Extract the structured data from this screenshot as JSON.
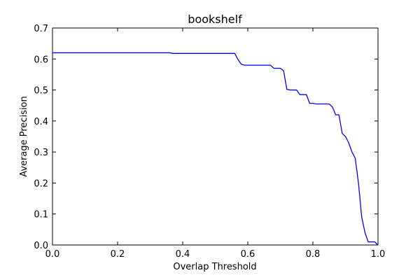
{
  "chart_data": {
    "type": "line",
    "title": "bookshelf",
    "xlabel": "Overlap Threshold",
    "ylabel": "Average Precision",
    "xlim": [
      0.0,
      1.0
    ],
    "ylim": [
      0.0,
      0.7
    ],
    "xticks": [
      "0.0",
      "0.2",
      "0.4",
      "0.6",
      "0.8",
      "1.0"
    ],
    "yticks": [
      "0.0",
      "0.1",
      "0.2",
      "0.3",
      "0.4",
      "0.5",
      "0.6",
      "0.7"
    ],
    "grid": false,
    "legend": "none",
    "line_color": "#0000ff",
    "series": [
      {
        "x": [
          0.0,
          0.36,
          0.37,
          0.56,
          0.57,
          0.58,
          0.59,
          0.62,
          0.67,
          0.68,
          0.7,
          0.71,
          0.72,
          0.73,
          0.74,
          0.75,
          0.76,
          0.77,
          0.78,
          0.79,
          0.8,
          0.81,
          0.82,
          0.83,
          0.84,
          0.85,
          0.86,
          0.87,
          0.88,
          0.89,
          0.9,
          0.91,
          0.92,
          0.93,
          0.94,
          0.95,
          0.96,
          0.97,
          0.98,
          0.99,
          1.0
        ],
        "y": [
          0.62,
          0.62,
          0.618,
          0.618,
          0.598,
          0.583,
          0.58,
          0.58,
          0.58,
          0.57,
          0.57,
          0.562,
          0.502,
          0.5,
          0.5,
          0.5,
          0.485,
          0.485,
          0.485,
          0.457,
          0.457,
          0.455,
          0.455,
          0.455,
          0.455,
          0.455,
          0.445,
          0.42,
          0.42,
          0.36,
          0.35,
          0.33,
          0.3,
          0.28,
          0.2,
          0.09,
          0.04,
          0.01,
          0.01,
          0.01,
          0.0
        ]
      }
    ]
  }
}
